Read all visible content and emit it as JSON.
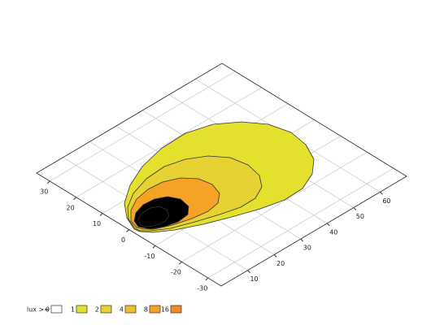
{
  "chart_data": {
    "type": "contour",
    "xlim": [
      0,
      70
    ],
    "xticks": [
      10,
      20,
      30,
      40,
      50,
      60
    ],
    "ylim": [
      -35,
      35
    ],
    "yticks": [
      30,
      20,
      10,
      0,
      -10,
      -20,
      -30
    ],
    "grid": true,
    "legend_title": "lux >=",
    "levels": [
      0,
      1,
      2,
      4,
      8,
      16
    ],
    "colors": [
      "#ffffff",
      "#e4e02e",
      "#e6d233",
      "#eebf2c",
      "#f4a327",
      "#ef8a26"
    ]
  }
}
